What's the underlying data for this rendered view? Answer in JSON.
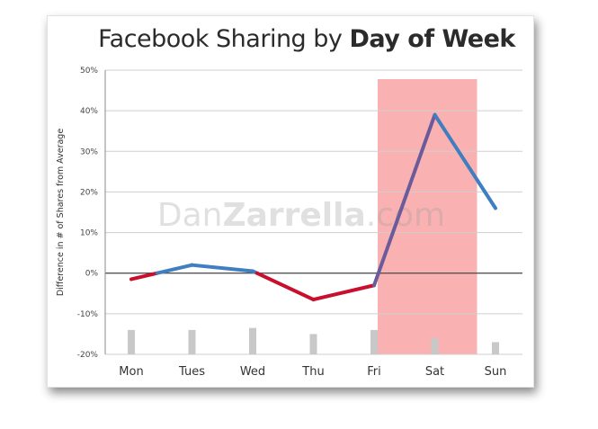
{
  "chart_title": {
    "regular": "Facebook Sharing by ",
    "bold": "Day of Week"
  },
  "watermark": {
    "part1": "Dan",
    "part2": "Zarrella",
    "part3": ".com"
  },
  "chart_data": {
    "type": "line",
    "title": "Facebook Sharing by Day of Week",
    "xlabel": "",
    "ylabel": "Difference in # of Shares from Average",
    "categories": [
      "Mon",
      "Tues",
      "Wed",
      "Thu",
      "Fri",
      "Sat",
      "Sun"
    ],
    "series": [
      {
        "values": [
          -1.5,
          2,
          0.5,
          -6.5,
          -3,
          39,
          16
        ]
      }
    ],
    "bars": [
      -14,
      -14,
      -13.5,
      -15,
      -14,
      -16,
      -17
    ],
    "ylim": [
      -20,
      50
    ],
    "yticks": [
      -20,
      -10,
      0,
      10,
      20,
      30,
      40,
      50
    ],
    "ytick_labels": [
      "-20%",
      "-10%",
      "0%",
      "10%",
      "20%",
      "30%",
      "40%",
      "50%"
    ],
    "grid": true,
    "highlight": {
      "from": "Fri",
      "to": "Sat",
      "color": "#f9a8aa"
    },
    "colors": {
      "above_zero": "#3f7ec0",
      "below_zero": "#c8102e",
      "highlight_line": "#6b5b9a",
      "bars": "#c8c8c8",
      "zero_line": "#555555",
      "grid": "#cfcfcf"
    }
  }
}
